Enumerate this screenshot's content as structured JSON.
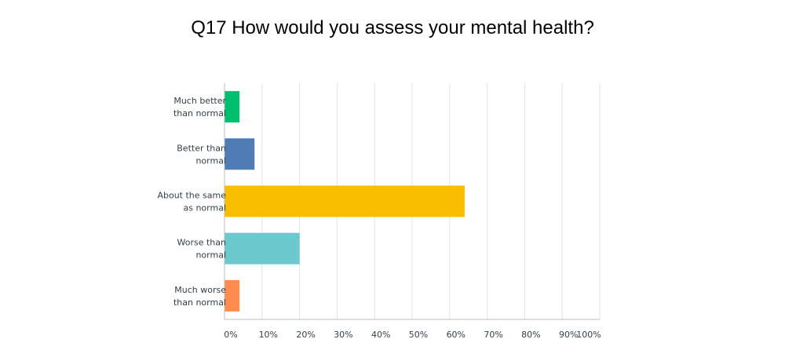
{
  "chart_data": {
    "type": "bar",
    "orientation": "horizontal",
    "title": "Q17 How would you assess your mental health?",
    "categories": [
      [
        "Much better",
        "than normal"
      ],
      [
        "Better than",
        "normal"
      ],
      [
        "About the same",
        "as normal"
      ],
      [
        "Worse than",
        "normal"
      ],
      [
        "Much worse",
        "than normal"
      ]
    ],
    "values": [
      4,
      8,
      64,
      20,
      4
    ],
    "colors": [
      "#00bf6f",
      "#507cb6",
      "#f9be00",
      "#6bc8cd",
      "#ff8b4f"
    ],
    "xlim": [
      0,
      100
    ],
    "x_ticks": [
      "0%",
      "10%",
      "20%",
      "30%",
      "40%",
      "50%",
      "60%",
      "70%",
      "80%",
      "90%",
      "100%"
    ],
    "grid": true
  }
}
